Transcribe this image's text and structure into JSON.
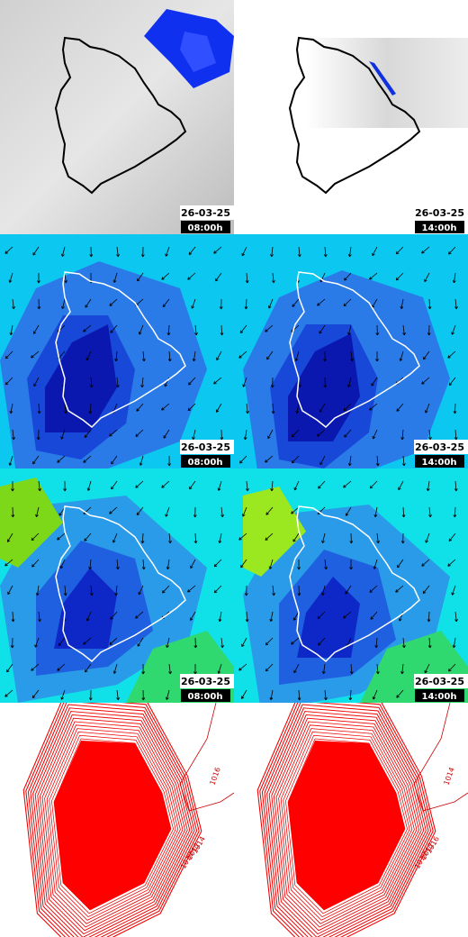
{
  "panels": [
    {
      "date": "26-03-25",
      "time": "08:00h"
    },
    {
      "date": "26-03-25",
      "time": "14:00h"
    },
    {
      "date": "26-03-25",
      "time": "08:00h"
    },
    {
      "date": "26-03-25",
      "time": "14:00h"
    },
    {
      "date": "26-03-25",
      "time": "08:00h"
    },
    {
      "date": "26-03-25",
      "time": "14:00h"
    },
    {
      "labels": [
        "1016",
        "1010",
        "1012",
        "1014"
      ]
    },
    {
      "labels": [
        "1014",
        "1010",
        "1012",
        "1016"
      ]
    }
  ]
}
